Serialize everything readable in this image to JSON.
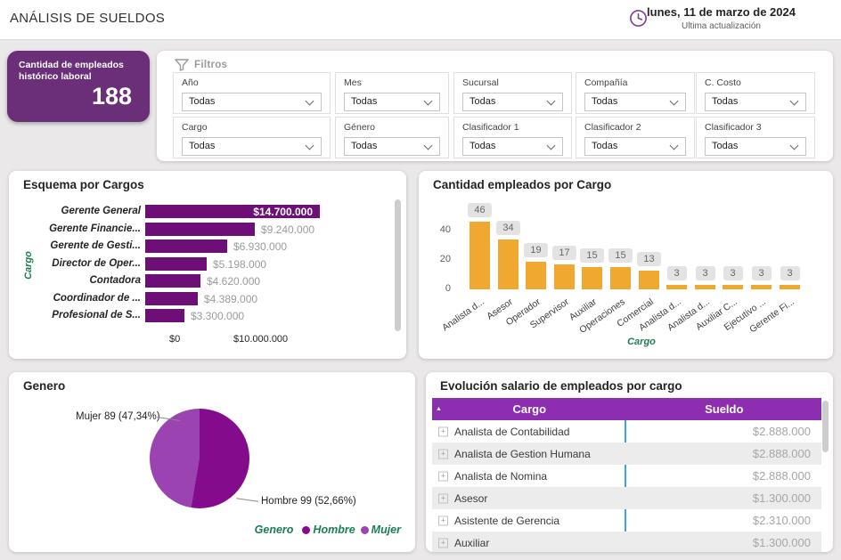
{
  "header": {
    "title": "ANÁLISIS DE SUELDOS",
    "date": "lunes, 11 de marzo de 2024",
    "updated_label": "Ultima actualización"
  },
  "kpi": {
    "label": "Cantidad de empleados histórico laboral",
    "value": "188"
  },
  "filters": {
    "title": "Filtros",
    "items": [
      {
        "label": "Año",
        "value": "Todas"
      },
      {
        "label": "Mes",
        "value": "Todas"
      },
      {
        "label": "Sucursal",
        "value": "Todas"
      },
      {
        "label": "Compañía",
        "value": "Todas"
      },
      {
        "label": "C. Costo",
        "value": "Todas"
      },
      {
        "label": "Cargo",
        "value": "Todas"
      },
      {
        "label": "Género",
        "value": "Todas"
      },
      {
        "label": "Clasificador 1",
        "value": "Todas"
      },
      {
        "label": "Clasificador 2",
        "value": "Todas"
      },
      {
        "label": "Clasificador 3",
        "value": "Todas"
      }
    ]
  },
  "colors": {
    "kpi_purple": "#6B2E79",
    "bar_purple": "#6E0F78",
    "column_amber": "#F0A830",
    "table_header_purple": "#8D2EB0",
    "axis_green": "#1B7F52",
    "pie_hombre": "#830B8C",
    "pie_mujer": "#9B43B0",
    "divider_blue": "#3fa0e8"
  },
  "chart_data": [
    {
      "type": "bar",
      "orientation": "horizontal",
      "title": "Esquema por Cargos",
      "ylabel": "Cargo",
      "xlabel": "",
      "categories": [
        "Gerente General",
        "Gerente Financie...",
        "Gerente de Gesti...",
        "Director de Oper...",
        "Contadora",
        "Coordinador de ...",
        "Profesional de S..."
      ],
      "values": [
        14700000,
        9240000,
        6930000,
        5198000,
        4620000,
        4389000,
        3300000
      ],
      "value_labels": [
        "$14.700.000",
        "$9.240.000",
        "$6.930.000",
        "$5.198.000",
        "$4.620.000",
        "$4.389.000",
        "$3.300.000"
      ],
      "x_ticks": [
        "$0",
        "$10.000.000"
      ],
      "xlim": [
        0,
        14700000
      ],
      "grid": false
    },
    {
      "type": "bar",
      "orientation": "vertical",
      "title": "Cantidad empleados por Cargo",
      "xlabel": "Cargo",
      "ylabel": "",
      "categories": [
        "Analista d...",
        "Asesor",
        "Operador",
        "Supervisor",
        "Auxiliar",
        "Operaciones",
        "Comercial",
        "Analista d...",
        "Analista d...",
        "Auxiliar C...",
        "Ejecutivo ...",
        "Gerente Fi..."
      ],
      "values": [
        46,
        34,
        19,
        17,
        15,
        15,
        13,
        3,
        3,
        3,
        3,
        3
      ],
      "y_ticks": [
        0,
        20,
        40
      ],
      "ylim": [
        0,
        50
      ],
      "grid": false
    },
    {
      "type": "pie",
      "title": "Genero",
      "legend_title": "Genero",
      "legend_position": "bottom-right",
      "slices": [
        {
          "label": "Hombre",
          "value": 99,
          "pct": 52.66,
          "callout": "Hombre 99 (52,66%)",
          "color": "#830B8C"
        },
        {
          "label": "Mujer",
          "value": 89,
          "pct": 47.34,
          "callout": "Mujer 89 (47,34%)",
          "color": "#9B43B0"
        }
      ]
    },
    {
      "type": "table",
      "title": "Evolución salario de empleados por cargo",
      "columns": [
        "Cargo",
        "Sueldo"
      ],
      "rows": [
        [
          "Analista de Contabilidad",
          "$2.888.000"
        ],
        [
          "Analista de Gestion Humana",
          "$2.888.000"
        ],
        [
          "Analista de Nomina",
          "$2.888.000"
        ],
        [
          "Asesor",
          "$1.300.000"
        ],
        [
          "Asistente de Gerencia",
          "$2.310.000"
        ],
        [
          "Auxiliar",
          "$1.300.000"
        ]
      ]
    }
  ]
}
